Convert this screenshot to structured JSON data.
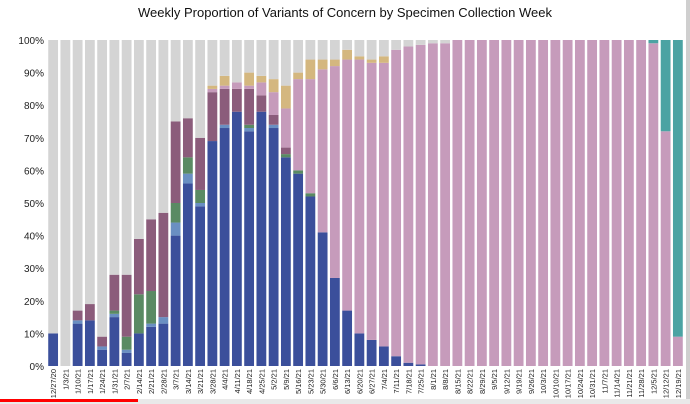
{
  "chart_data": {
    "type": "bar",
    "stacked": true,
    "title": "Weekly Proportion of Variants of Concern by Specimen Collection Week",
    "xlabel": "",
    "ylabel": "",
    "ylim": [
      0,
      100
    ],
    "yticks": [
      "0%",
      "10%",
      "20%",
      "30%",
      "40%",
      "50%",
      "60%",
      "70%",
      "80%",
      "90%",
      "100%"
    ],
    "categories": [
      "12/27/20",
      "1/3/21",
      "1/10/21",
      "1/17/21",
      "1/24/21",
      "1/31/21",
      "2/7/21",
      "2/14/21",
      "2/21/21",
      "2/28/21",
      "3/7/21",
      "3/14/21",
      "3/21/21",
      "3/28/21",
      "4/4/21",
      "4/11/21",
      "4/18/21",
      "4/25/21",
      "5/2/21",
      "5/9/21",
      "5/16/21",
      "5/23/21",
      "5/30/21",
      "6/6/21",
      "6/13/21",
      "6/20/21",
      "6/27/21",
      "7/4/21",
      "7/11/21",
      "7/18/21",
      "7/25/21",
      "8/1/21",
      "8/8/21",
      "8/15/21",
      "8/22/21",
      "8/29/21",
      "9/5/21",
      "9/12/21",
      "9/19/21",
      "9/26/21",
      "10/3/21",
      "10/10/21",
      "10/17/21",
      "10/24/21",
      "10/31/21",
      "11/7/21",
      "11/14/21",
      "11/21/21",
      "11/28/21",
      "12/5/21",
      "12/12/21",
      "12/19/21"
    ],
    "series": [
      {
        "color": "#3b4f9b",
        "values": [
          10,
          0,
          13,
          14,
          5,
          15,
          4,
          10,
          12,
          13,
          40,
          56,
          49,
          69,
          73,
          78,
          72,
          78,
          73,
          64,
          59,
          52,
          41,
          27,
          17,
          10,
          8,
          6,
          3,
          1,
          0.5,
          0,
          0,
          0,
          0,
          0,
          0,
          0,
          0,
          0,
          0,
          0,
          0,
          0,
          0,
          0,
          0,
          0,
          0,
          0,
          0,
          0
        ]
      },
      {
        "color": "#6a8fc2",
        "values": [
          0,
          0,
          1,
          0,
          1,
          1,
          1,
          0,
          1,
          2,
          4,
          3,
          1,
          0,
          1,
          0,
          1,
          0,
          1,
          0,
          0,
          0,
          0,
          0,
          0,
          0,
          0,
          0,
          0,
          0,
          0,
          0,
          0,
          0,
          0,
          0,
          0,
          0,
          0,
          0,
          0,
          0,
          0,
          0,
          0,
          0,
          0,
          0,
          0,
          0,
          0,
          0
        ]
      },
      {
        "color": "#5a8a63",
        "values": [
          0,
          0,
          0,
          0,
          0,
          1,
          4,
          12,
          10,
          0,
          6,
          5,
          4,
          0,
          0,
          0,
          1,
          0,
          0,
          1,
          1,
          1,
          0,
          0,
          0,
          0,
          0,
          0,
          0,
          0,
          0,
          0,
          0,
          0,
          0,
          0,
          0,
          0,
          0,
          0,
          0,
          0,
          0,
          0,
          0,
          0,
          0,
          0,
          0,
          0,
          0,
          0
        ]
      },
      {
        "color": "#8b5c7b",
        "values": [
          0,
          0,
          3,
          5,
          3,
          11,
          19,
          17,
          22,
          32,
          25,
          12,
          16,
          15,
          11,
          7,
          11,
          5,
          3,
          2,
          0,
          0,
          0,
          0,
          0,
          0,
          0,
          0,
          0,
          0,
          0,
          0,
          0,
          0,
          0,
          0,
          0,
          0,
          0,
          0,
          0,
          0,
          0,
          0,
          0,
          0,
          0,
          0,
          0,
          0,
          0,
          0
        ]
      },
      {
        "color": "#c69bbb",
        "values": [
          0,
          0,
          0,
          0,
          0,
          0,
          0,
          0,
          0,
          0,
          0,
          0,
          0,
          1,
          1,
          2,
          1,
          4,
          7,
          12,
          28,
          35,
          50,
          65,
          77,
          84,
          85,
          87,
          94,
          97,
          98,
          99,
          99,
          100,
          100,
          100,
          100,
          100,
          100,
          100,
          100,
          100,
          100,
          100,
          100,
          100,
          100,
          100,
          100,
          99,
          72,
          9
        ]
      },
      {
        "color": "#d4b77f",
        "values": [
          0,
          0,
          0,
          0,
          0,
          0,
          0,
          0,
          0,
          0,
          0,
          0,
          0,
          1,
          3,
          0,
          4,
          2,
          4,
          7,
          2,
          6,
          3,
          2,
          3,
          1,
          1,
          2,
          0,
          0,
          0,
          0,
          0,
          0,
          0,
          0,
          0,
          0,
          0,
          0,
          0,
          0,
          0,
          0,
          0,
          0,
          0,
          0,
          0,
          0,
          0,
          0
        ]
      },
      {
        "color": "#4ba3a3",
        "values": [
          0,
          0,
          0,
          0,
          0,
          0,
          0,
          0,
          0,
          0,
          0,
          0,
          0,
          0,
          0,
          0,
          0,
          0,
          0,
          0,
          0,
          0,
          0,
          0,
          0,
          0,
          0,
          0,
          0,
          0,
          0,
          0,
          0,
          0,
          0,
          0,
          0,
          0,
          0,
          0,
          0,
          0,
          0,
          0,
          0,
          0,
          0,
          0,
          0,
          1,
          28,
          91
        ]
      }
    ],
    "remainder_color": "#d4d4d4",
    "grid": false,
    "legend": "none"
  },
  "video": {
    "progress_color": "#ff0000",
    "progress": 0.2
  }
}
